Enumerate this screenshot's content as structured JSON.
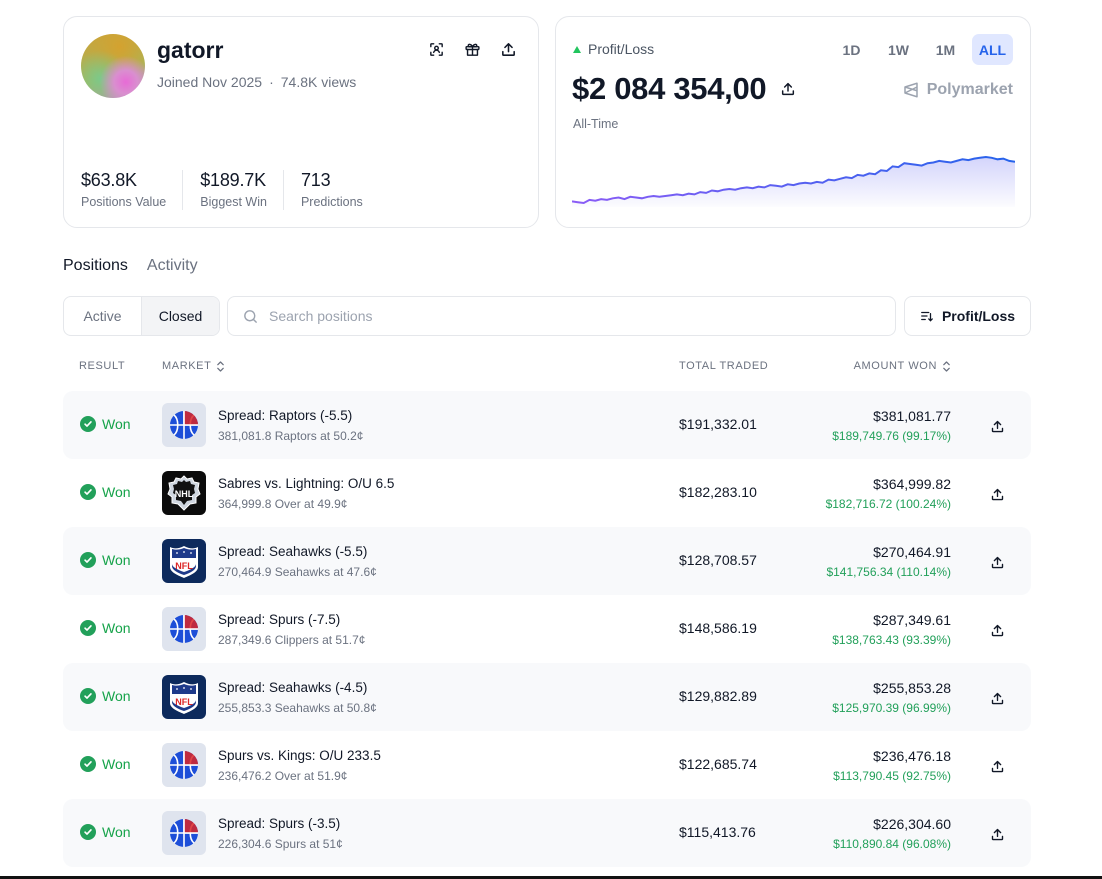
{
  "profile": {
    "username": "gatorr",
    "joined": "Joined Nov 2025",
    "separator": "·",
    "views": "74.8K views",
    "stats": [
      {
        "value": "$63.8K",
        "label": "Positions Value"
      },
      {
        "value": "$189.7K",
        "label": "Biggest Win"
      },
      {
        "value": "713",
        "label": "Predictions"
      }
    ],
    "icons": [
      "scan-icon",
      "gift-icon",
      "share-icon"
    ]
  },
  "pnl": {
    "label": "Profit/Loss",
    "amount": "$2 084 354,00",
    "period_label": "All-Time",
    "brand": "Polymarket",
    "timeframes": [
      "1D",
      "1W",
      "1M",
      "ALL"
    ],
    "active_timeframe": "ALL",
    "trend_color": "#22c55e"
  },
  "chart_data": {
    "type": "area",
    "title": "",
    "xlabel": "",
    "ylabel": "",
    "grid": false,
    "colors": {
      "start": "#8b5cf6",
      "end": "#2563eb"
    },
    "values": [
      6,
      5,
      4,
      8,
      7,
      9,
      8,
      10,
      11,
      9,
      12,
      11,
      10,
      12,
      13,
      12,
      13,
      14,
      15,
      14,
      16,
      15,
      18,
      17,
      20,
      19,
      21,
      22,
      21,
      23,
      24,
      23,
      25,
      24,
      27,
      26,
      25,
      28,
      27,
      29,
      30,
      29,
      31,
      30,
      34,
      33,
      35,
      37,
      36,
      40,
      39,
      42,
      41,
      46,
      45,
      51,
      50,
      55,
      54,
      53,
      52,
      55,
      56,
      58,
      57,
      56,
      58,
      60,
      59,
      61,
      62,
      63,
      62,
      60,
      61,
      58,
      57
    ]
  },
  "tabs": [
    {
      "label": "Positions",
      "active": true
    },
    {
      "label": "Activity",
      "active": false
    }
  ],
  "filters": {
    "segments": [
      "Active",
      "Closed"
    ],
    "active_segment": "Closed",
    "search_placeholder": "Search positions",
    "sort_label": "Profit/Loss"
  },
  "table": {
    "headers": {
      "result": "RESULT",
      "market": "MARKET",
      "total_traded": "TOTAL TRADED",
      "amount_won": "AMOUNT WON"
    },
    "rows": [
      {
        "result": "Won",
        "icon": "nba",
        "title": "Spread: Raptors (-5.5)",
        "subtitle": "381,081.8 Raptors at 50.2¢",
        "total_traded": "$191,332.01",
        "amount_won": "$381,081.77",
        "gain": "$189,749.76 (99.17%)"
      },
      {
        "result": "Won",
        "icon": "nhl",
        "title": "Sabres vs. Lightning: O/U 6.5",
        "subtitle": "364,999.8 Over at 49.9¢",
        "total_traded": "$182,283.10",
        "amount_won": "$364,999.82",
        "gain": "$182,716.72 (100.24%)"
      },
      {
        "result": "Won",
        "icon": "nfl",
        "title": "Spread: Seahawks (-5.5)",
        "subtitle": "270,464.9 Seahawks at 47.6¢",
        "total_traded": "$128,708.57",
        "amount_won": "$270,464.91",
        "gain": "$141,756.34 (110.14%)"
      },
      {
        "result": "Won",
        "icon": "nba",
        "title": "Spread: Spurs (-7.5)",
        "subtitle": "287,349.6 Clippers at 51.7¢",
        "total_traded": "$148,586.19",
        "amount_won": "$287,349.61",
        "gain": "$138,763.43 (93.39%)"
      },
      {
        "result": "Won",
        "icon": "nfl",
        "title": "Spread: Seahawks (-4.5)",
        "subtitle": "255,853.3 Seahawks at 50.8¢",
        "total_traded": "$129,882.89",
        "amount_won": "$255,853.28",
        "gain": "$125,970.39 (96.99%)"
      },
      {
        "result": "Won",
        "icon": "nba",
        "title": "Spurs vs. Kings: O/U 233.5",
        "subtitle": "236,476.2 Over at 51.9¢",
        "total_traded": "$122,685.74",
        "amount_won": "$236,476.18",
        "gain": "$113,790.45 (92.75%)"
      },
      {
        "result": "Won",
        "icon": "nba",
        "title": "Spread: Spurs (-3.5)",
        "subtitle": "226,304.6 Spurs at 51¢",
        "total_traded": "$115,413.76",
        "amount_won": "$226,304.60",
        "gain": "$110,890.84 (96.08%)"
      }
    ]
  },
  "logo_text": {
    "nhl": "NHL",
    "nfl": "NFL"
  }
}
